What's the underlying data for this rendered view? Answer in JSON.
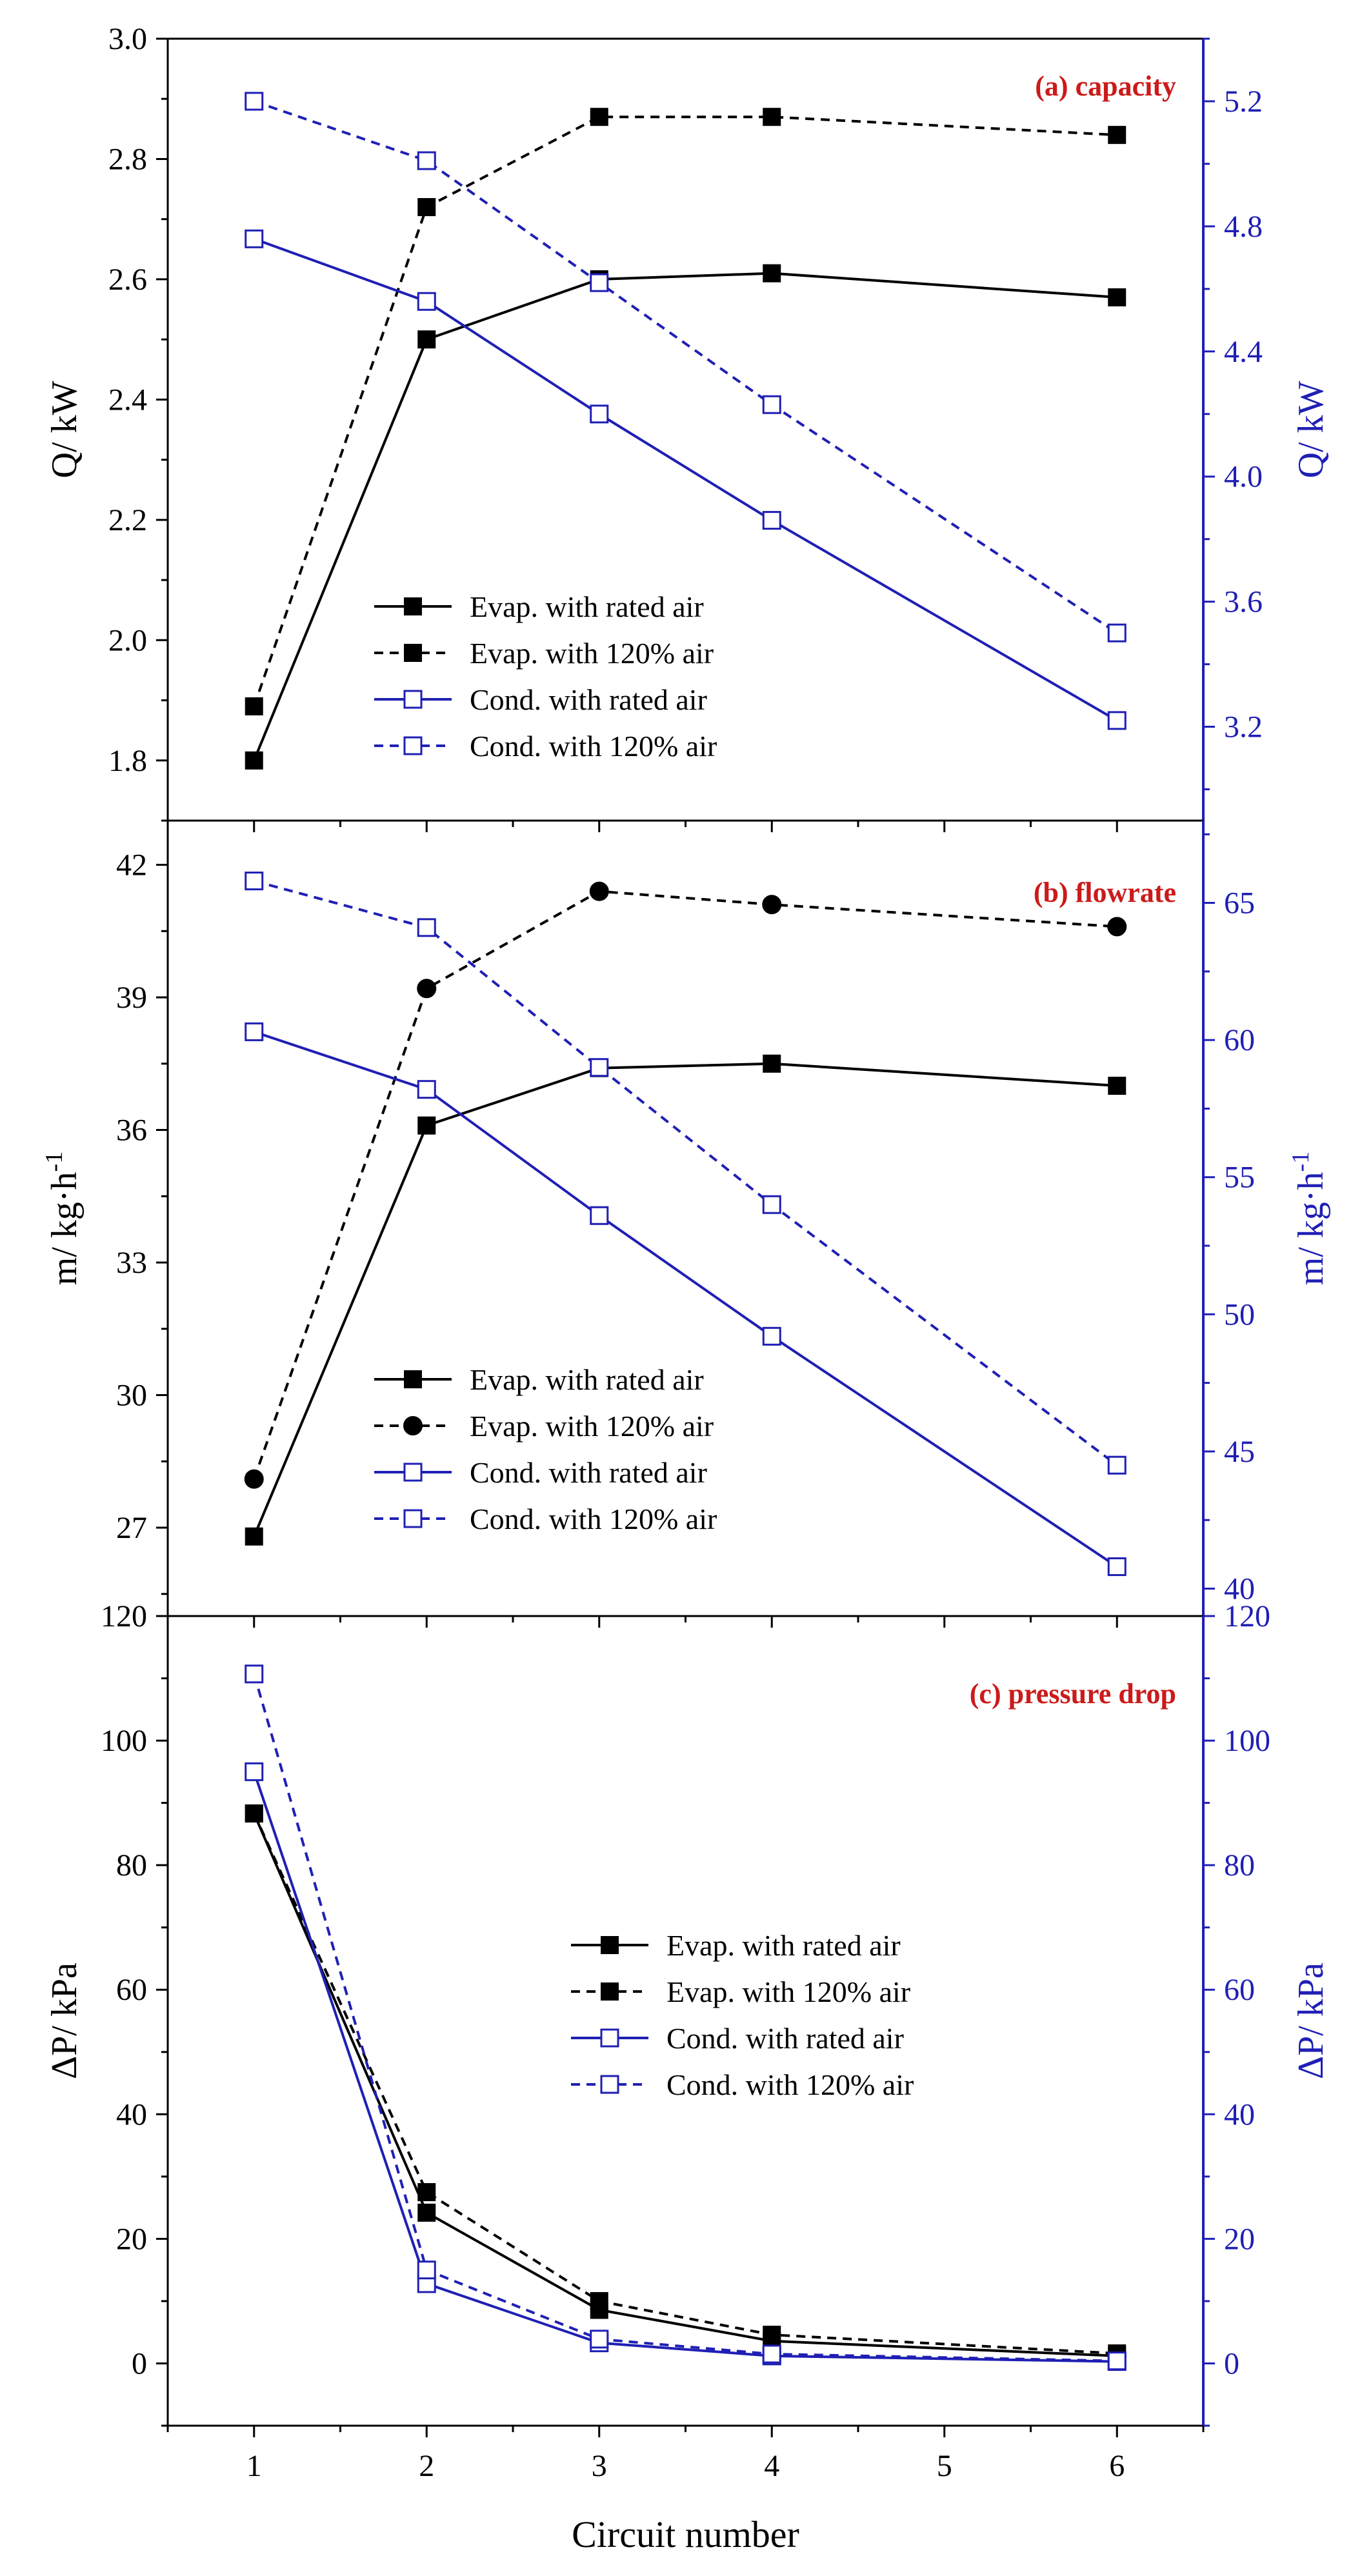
{
  "chart_data": [
    {
      "type": "line",
      "title": "(a) capacity",
      "xlabel": "",
      "ylabel": "Q/ kW",
      "y2label": "Q/ kW",
      "xlim": [
        0.5,
        6.5
      ],
      "ylim": [
        1.7,
        3.0
      ],
      "y2lim": [
        2.9,
        5.4
      ],
      "yticks": [
        1.8,
        2.0,
        2.2,
        2.4,
        2.6,
        2.8,
        3.0
      ],
      "ytick_labels": [
        "1.8",
        "2.0",
        "2.2",
        "2.4",
        "2.6",
        "2.8",
        "3.0"
      ],
      "y2ticks": [
        3.2,
        3.6,
        4.0,
        4.4,
        4.8,
        5.2
      ],
      "y2tick_labels": [
        "3.2",
        "3.6",
        "4.0",
        "4.4",
        "4.8",
        "5.2"
      ],
      "x": [
        1,
        2,
        3,
        4,
        6
      ],
      "legend_position": "center-left",
      "series": [
        {
          "name": "Evap. with rated air",
          "axis": "left",
          "color": "#000000",
          "dash": "solid",
          "marker": "square-filled",
          "values": [
            1.8,
            2.5,
            2.6,
            2.61,
            2.57
          ]
        },
        {
          "name": "Evap. with 120% air",
          "axis": "left",
          "color": "#000000",
          "dash": "dashed",
          "marker": "square-filled",
          "values": [
            1.89,
            2.72,
            2.87,
            2.87,
            2.84
          ]
        },
        {
          "name": "Cond. with rated air",
          "axis": "right",
          "color": "#1f1fb4",
          "dash": "solid",
          "marker": "square-open",
          "values": [
            4.76,
            4.56,
            4.2,
            3.86,
            3.22
          ]
        },
        {
          "name": "Cond. with 120% air",
          "axis": "right",
          "color": "#1f1fb4",
          "dash": "dashed",
          "marker": "square-open",
          "values": [
            5.2,
            5.01,
            4.62,
            4.23,
            3.5
          ]
        }
      ]
    },
    {
      "type": "line",
      "title": "(b) flowrate",
      "xlabel": "",
      "ylabel": "m/ kg·h",
      "ylabel_sup": "-1",
      "y2label": "m/ kg·h",
      "y2label_sup": "-1",
      "xlim": [
        0.5,
        6.5
      ],
      "ylim": [
        25.0,
        43.0
      ],
      "y2lim": [
        39.0,
        68.0
      ],
      "yticks": [
        27,
        30,
        33,
        36,
        39,
        42
      ],
      "ytick_labels": [
        "27",
        "30",
        "33",
        "36",
        "39",
        "42"
      ],
      "y2ticks": [
        40,
        45,
        50,
        55,
        60,
        65
      ],
      "y2tick_labels": [
        "40",
        "45",
        "50",
        "55",
        "60",
        "65"
      ],
      "x": [
        1,
        2,
        3,
        4,
        6
      ],
      "legend_position": "bottom-left",
      "series": [
        {
          "name": "Evap. with rated air",
          "axis": "left",
          "color": "#000000",
          "dash": "solid",
          "marker": "square-filled",
          "values": [
            26.8,
            36.1,
            37.4,
            37.5,
            37.0
          ]
        },
        {
          "name": "Evap. with 120% air",
          "axis": "left",
          "color": "#000000",
          "dash": "dashed",
          "marker": "circle-filled",
          "values": [
            28.1,
            39.2,
            41.4,
            41.1,
            40.6
          ]
        },
        {
          "name": "Cond. with rated air",
          "axis": "right",
          "color": "#1f1fb4",
          "dash": "solid",
          "marker": "square-open",
          "values": [
            60.3,
            58.2,
            53.6,
            49.2,
            40.8
          ]
        },
        {
          "name": "Cond. with 120% air",
          "axis": "right",
          "color": "#1f1fb4",
          "dash": "dashed",
          "marker": "square-open",
          "values": [
            65.8,
            64.1,
            59.0,
            54.0,
            44.5
          ]
        }
      ]
    },
    {
      "type": "line",
      "title": "(c) pressure drop",
      "xlabel": "Circuit number",
      "ylabel": "ΔP/ kPa",
      "y2label": "ΔP/ kPa",
      "xlim": [
        0.5,
        6.5
      ],
      "ylim": [
        -10,
        120
      ],
      "y2lim": [
        -10,
        120
      ],
      "yticks": [
        0,
        20,
        40,
        60,
        80,
        100,
        120
      ],
      "ytick_labels": [
        "0",
        "20",
        "40",
        "60",
        "80",
        "100",
        "120"
      ],
      "y2ticks": [
        0,
        20,
        40,
        60,
        80,
        100,
        120
      ],
      "y2tick_labels": [
        "0",
        "20",
        "40",
        "60",
        "80",
        "100",
        "120"
      ],
      "xticks": [
        1,
        2,
        3,
        4,
        5,
        6
      ],
      "xtick_labels": [
        "1",
        "2",
        "3",
        "4",
        "5",
        "6"
      ],
      "x": [
        1,
        2,
        3,
        4,
        6
      ],
      "legend_position": "center-right",
      "series": [
        {
          "name": "Evap. with rated air",
          "axis": "left",
          "color": "#000000",
          "dash": "solid",
          "marker": "square-filled",
          "values": [
            88.3,
            24.2,
            8.6,
            3.6,
            1.2
          ]
        },
        {
          "name": "Evap. with 120% air",
          "axis": "left",
          "color": "#000000",
          "dash": "dashed",
          "marker": "square-filled",
          "values": [
            88.3,
            27.5,
            10.0,
            4.6,
            1.6
          ]
        },
        {
          "name": "Cond. with rated air",
          "axis": "right",
          "color": "#1f1fb4",
          "dash": "solid",
          "marker": "square-open",
          "values": [
            95.0,
            12.8,
            3.3,
            1.2,
            0.3
          ]
        },
        {
          "name": "Cond. with 120% air",
          "axis": "right",
          "color": "#1f1fb4",
          "dash": "dashed",
          "marker": "square-open",
          "values": [
            110.7,
            15.0,
            3.9,
            1.5,
            0.4
          ]
        }
      ]
    }
  ],
  "colors": {
    "axis_left": "#000000",
    "axis_right": "#1f1fb4",
    "title": "#cc1a1a"
  }
}
